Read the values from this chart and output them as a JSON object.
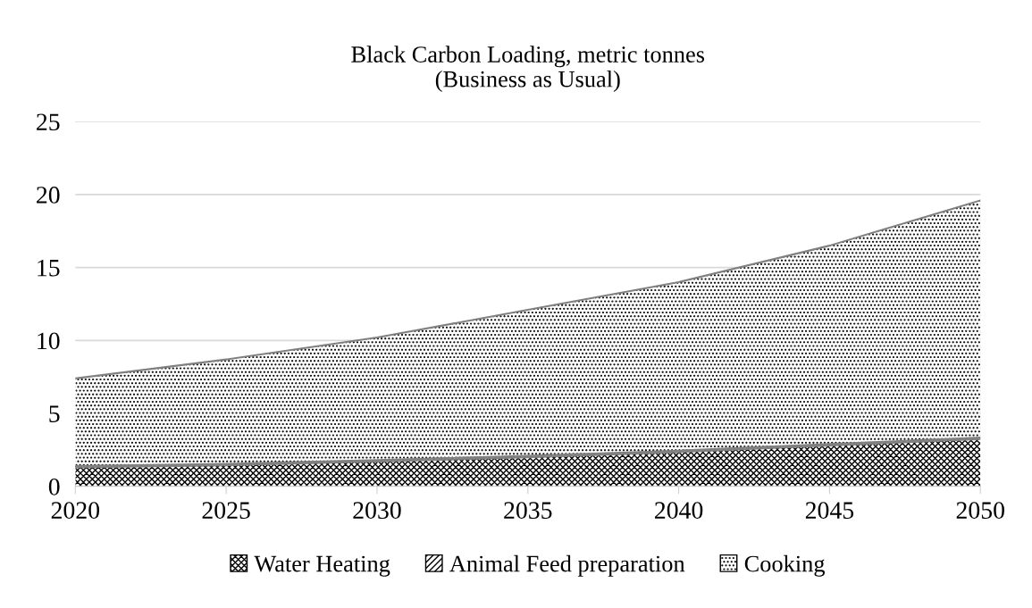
{
  "chart_data": {
    "type": "area",
    "title": "Black Carbon Loading, metric tonnes\n(Business as Usual)",
    "stacked": true,
    "x": [
      2020,
      2025,
      2030,
      2035,
      2040,
      2045,
      2050
    ],
    "series": [
      {
        "name": "Water Heating",
        "color": "#000000",
        "values": [
          1.3,
          1.45,
          1.7,
          2.0,
          2.35,
          2.8,
          3.25
        ]
      },
      {
        "name": "Animal Feed preparation",
        "color": "#000000",
        "values": [
          0.1,
          0.1,
          0.1,
          0.1,
          0.1,
          0.1,
          0.1
        ]
      },
      {
        "name": "Cooking",
        "color": "#000000",
        "values": [
          6.0,
          7.15,
          8.4,
          10.0,
          11.55,
          13.6,
          16.25
        ]
      }
    ],
    "xlim": [
      2020,
      2050
    ],
    "xticks": [
      2020,
      2025,
      2030,
      2035,
      2040,
      2045,
      2050
    ],
    "ylim": [
      0,
      25
    ],
    "yticks": [
      0,
      5,
      10,
      15,
      20,
      25
    ],
    "grid": "y",
    "legend": "bottom"
  }
}
